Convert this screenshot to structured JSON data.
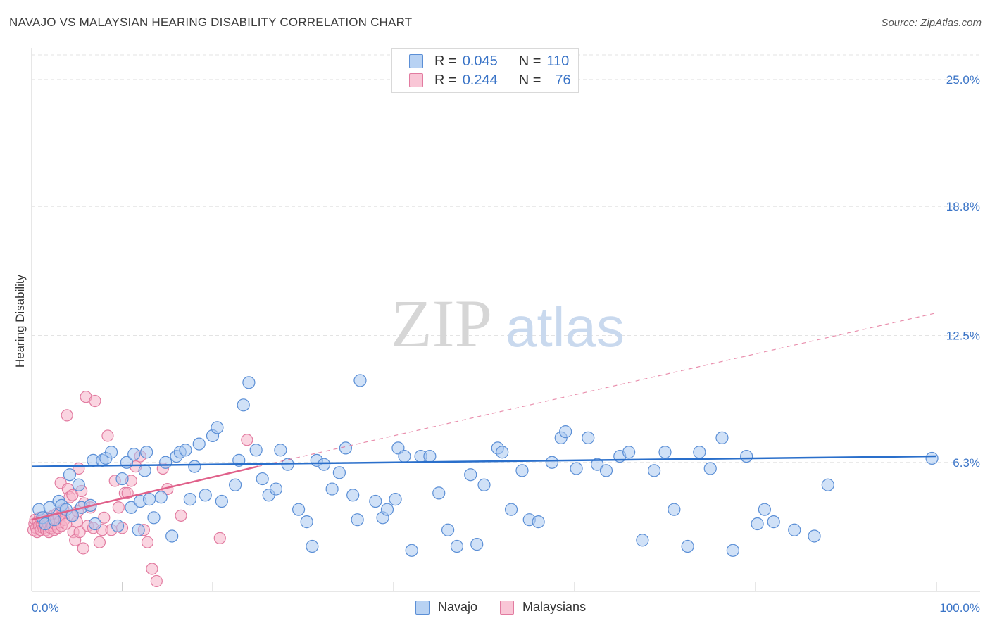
{
  "header": {
    "title": "NAVAJO VS MALAYSIAN HEARING DISABILITY CORRELATION CHART",
    "source": "Source: ZipAtlas.com"
  },
  "legend": {
    "series": [
      {
        "r_label": "R = ",
        "r_value": "0.045",
        "n_label": "N = ",
        "n_value": "110"
      },
      {
        "r_label": "R = ",
        "r_value": "0.244",
        "n_label": "N = ",
        "n_value": "76"
      }
    ]
  },
  "watermark": {
    "part1": "ZIP",
    "part2": "atlas"
  },
  "colors": {
    "navajo_fill": "#aac8f0",
    "navajo_stroke": "#5b8fd6",
    "navajo_line": "#2a6fcb",
    "malay_fill": "#f6b3c8",
    "malay_stroke": "#e27ba0",
    "malay_line": "#e0608a",
    "axis_text": "#3a74c7"
  },
  "chart_data": {
    "type": "scatter",
    "title": "NAVAJO VS MALAYSIAN HEARING DISABILITY CORRELATION CHART",
    "xlabel": "",
    "ylabel": "Hearing Disability",
    "xlim": [
      0,
      100
    ],
    "ylim": [
      0,
      26.2
    ],
    "x_tick_labels": [
      "0.0%",
      "100.0%"
    ],
    "y_ticks": [
      6.3,
      12.5,
      18.8,
      25.0
    ],
    "y_tick_labels": [
      "6.3%",
      "12.5%",
      "18.8%",
      "25.0%"
    ],
    "grid": true,
    "legend_position": "top-center",
    "series": [
      {
        "name": "Navajo",
        "R": 0.045,
        "N": 110,
        "trend": {
          "x": [
            0,
            100
          ],
          "y": [
            6.1,
            6.6
          ]
        },
        "points": [
          [
            0.8,
            4.0
          ],
          [
            1.2,
            3.6
          ],
          [
            1.5,
            3.3
          ],
          [
            2.0,
            4.1
          ],
          [
            2.5,
            3.5
          ],
          [
            3.0,
            4.4
          ],
          [
            3.3,
            4.2
          ],
          [
            3.8,
            4.0
          ],
          [
            4.2,
            5.7
          ],
          [
            4.5,
            3.7
          ],
          [
            5.2,
            5.2
          ],
          [
            5.5,
            4.1
          ],
          [
            6.5,
            4.2
          ],
          [
            6.8,
            6.4
          ],
          [
            7.0,
            3.3
          ],
          [
            7.8,
            6.4
          ],
          [
            8.2,
            6.5
          ],
          [
            8.8,
            6.8
          ],
          [
            9.5,
            3.2
          ],
          [
            10.0,
            5.5
          ],
          [
            10.5,
            6.3
          ],
          [
            11.0,
            4.1
          ],
          [
            11.3,
            6.7
          ],
          [
            11.8,
            3.0
          ],
          [
            12.0,
            4.4
          ],
          [
            12.5,
            5.9
          ],
          [
            12.7,
            6.8
          ],
          [
            13.0,
            4.5
          ],
          [
            13.5,
            3.6
          ],
          [
            14.3,
            4.6
          ],
          [
            14.8,
            6.3
          ],
          [
            15.5,
            2.7
          ],
          [
            16.0,
            6.6
          ],
          [
            16.4,
            6.8
          ],
          [
            17.0,
            6.9
          ],
          [
            17.5,
            4.5
          ],
          [
            18.0,
            6.1
          ],
          [
            18.5,
            7.2
          ],
          [
            19.2,
            4.7
          ],
          [
            20.0,
            7.6
          ],
          [
            20.5,
            8.0
          ],
          [
            21.0,
            4.4
          ],
          [
            22.5,
            5.2
          ],
          [
            22.9,
            6.4
          ],
          [
            23.4,
            9.1
          ],
          [
            24.0,
            10.2
          ],
          [
            24.8,
            6.9
          ],
          [
            25.5,
            5.5
          ],
          [
            26.2,
            4.7
          ],
          [
            27.0,
            5.0
          ],
          [
            27.5,
            6.9
          ],
          [
            28.3,
            6.2
          ],
          [
            29.5,
            4.0
          ],
          [
            30.4,
            3.4
          ],
          [
            31.0,
            2.2
          ],
          [
            31.5,
            6.4
          ],
          [
            32.3,
            6.2
          ],
          [
            33.2,
            5.0
          ],
          [
            34.0,
            5.8
          ],
          [
            34.7,
            7.0
          ],
          [
            35.5,
            4.7
          ],
          [
            36.0,
            3.5
          ],
          [
            36.3,
            10.3
          ],
          [
            38.0,
            4.4
          ],
          [
            38.8,
            3.6
          ],
          [
            39.3,
            4.0
          ],
          [
            40.2,
            4.5
          ],
          [
            40.5,
            7.0
          ],
          [
            41.2,
            6.6
          ],
          [
            42.0,
            2.0
          ],
          [
            43.0,
            6.6
          ],
          [
            44.0,
            6.6
          ],
          [
            45.0,
            4.8
          ],
          [
            46.0,
            3.0
          ],
          [
            47.0,
            2.2
          ],
          [
            48.5,
            5.7
          ],
          [
            49.2,
            2.3
          ],
          [
            50.0,
            5.2
          ],
          [
            51.5,
            7.0
          ],
          [
            52.0,
            6.8
          ],
          [
            53.0,
            4.0
          ],
          [
            54.2,
            5.9
          ],
          [
            55.0,
            3.5
          ],
          [
            56.0,
            3.4
          ],
          [
            57.5,
            6.3
          ],
          [
            58.5,
            7.5
          ],
          [
            59.0,
            7.8
          ],
          [
            60.2,
            6.0
          ],
          [
            61.5,
            7.5
          ],
          [
            62.5,
            6.2
          ],
          [
            63.5,
            5.9
          ],
          [
            65.0,
            6.6
          ],
          [
            66.0,
            6.8
          ],
          [
            67.5,
            2.5
          ],
          [
            68.8,
            5.9
          ],
          [
            70.0,
            6.8
          ],
          [
            71.0,
            4.0
          ],
          [
            72.5,
            2.2
          ],
          [
            73.8,
            6.8
          ],
          [
            75.0,
            6.0
          ],
          [
            76.3,
            7.5
          ],
          [
            77.5,
            2.0
          ],
          [
            79.0,
            6.6
          ],
          [
            80.2,
            3.3
          ],
          [
            81.0,
            4.0
          ],
          [
            82.0,
            3.4
          ],
          [
            84.3,
            3.0
          ],
          [
            86.5,
            2.7
          ],
          [
            88.0,
            5.2
          ],
          [
            99.5,
            6.5
          ]
        ]
      },
      {
        "name": "Malaysians",
        "R": 0.244,
        "N": 76,
        "trend": {
          "x": [
            0,
            25
          ],
          "y": [
            3.5,
            6.1
          ]
        },
        "trend_extended": {
          "x": [
            25,
            100
          ],
          "y": [
            6.1,
            13.6
          ]
        },
        "points": [
          [
            0.2,
            3.0
          ],
          [
            0.3,
            3.3
          ],
          [
            0.4,
            3.5
          ],
          [
            0.5,
            3.1
          ],
          [
            0.6,
            2.9
          ],
          [
            0.7,
            3.4
          ],
          [
            0.8,
            3.2
          ],
          [
            0.9,
            3.6
          ],
          [
            1.0,
            3.0
          ],
          [
            1.1,
            3.3
          ],
          [
            1.2,
            3.5
          ],
          [
            1.3,
            3.1
          ],
          [
            1.4,
            3.4
          ],
          [
            1.5,
            3.2
          ],
          [
            1.6,
            3.0
          ],
          [
            1.7,
            3.6
          ],
          [
            1.8,
            3.3
          ],
          [
            1.9,
            2.9
          ],
          [
            2.0,
            3.5
          ],
          [
            2.1,
            3.1
          ],
          [
            2.2,
            3.4
          ],
          [
            2.3,
            3.2
          ],
          [
            2.4,
            3.7
          ],
          [
            2.5,
            3.0
          ],
          [
            2.6,
            3.3
          ],
          [
            2.7,
            3.5
          ],
          [
            2.8,
            3.8
          ],
          [
            2.9,
            3.1
          ],
          [
            3.0,
            3.6
          ],
          [
            3.1,
            3.4
          ],
          [
            3.2,
            5.3
          ],
          [
            3.3,
            3.2
          ],
          [
            3.5,
            4.0
          ],
          [
            3.6,
            3.5
          ],
          [
            3.8,
            3.3
          ],
          [
            3.9,
            8.6
          ],
          [
            4.0,
            5.0
          ],
          [
            4.2,
            4.6
          ],
          [
            4.4,
            3.7
          ],
          [
            4.5,
            4.7
          ],
          [
            4.6,
            2.9
          ],
          [
            4.8,
            2.5
          ],
          [
            5.0,
            3.4
          ],
          [
            5.1,
            3.9
          ],
          [
            5.2,
            6.0
          ],
          [
            5.3,
            2.9
          ],
          [
            5.5,
            4.9
          ],
          [
            5.7,
            2.1
          ],
          [
            5.8,
            4.3
          ],
          [
            6.0,
            9.5
          ],
          [
            6.2,
            3.2
          ],
          [
            6.5,
            4.1
          ],
          [
            6.8,
            3.1
          ],
          [
            7.0,
            9.3
          ],
          [
            7.5,
            2.4
          ],
          [
            7.8,
            3.0
          ],
          [
            8.0,
            3.6
          ],
          [
            8.4,
            7.6
          ],
          [
            8.8,
            3.0
          ],
          [
            9.2,
            5.4
          ],
          [
            9.6,
            4.1
          ],
          [
            10.0,
            3.1
          ],
          [
            10.3,
            4.8
          ],
          [
            10.6,
            4.8
          ],
          [
            11.0,
            5.4
          ],
          [
            11.5,
            6.1
          ],
          [
            12.0,
            6.6
          ],
          [
            12.4,
            3.0
          ],
          [
            12.8,
            2.4
          ],
          [
            13.3,
            1.1
          ],
          [
            13.8,
            0.5
          ],
          [
            14.5,
            6.0
          ],
          [
            15.0,
            5.0
          ],
          [
            16.5,
            3.7
          ],
          [
            20.8,
            2.6
          ],
          [
            23.8,
            7.4
          ]
        ]
      }
    ]
  }
}
